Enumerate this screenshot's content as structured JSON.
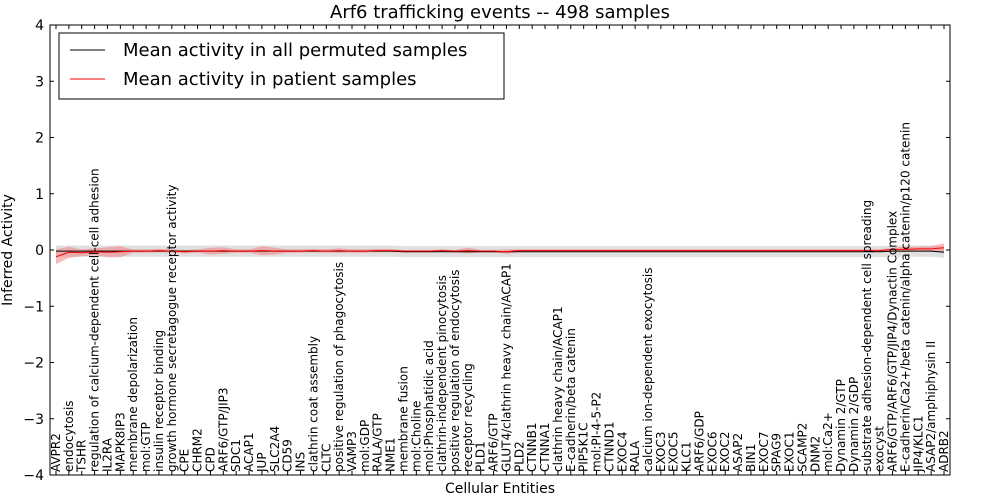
{
  "chart_data": {
    "type": "line",
    "title": "Arf6 trafficking events -- 498 samples",
    "xlabel": "Cellular Entities",
    "ylabel": "Inferred Activity",
    "ylim": [
      -4,
      4
    ],
    "yticks": [
      -4,
      -3,
      -2,
      -1,
      0,
      1,
      2,
      3,
      4
    ],
    "ytick_labels": [
      "−4",
      "−3",
      "−2",
      "−1",
      "0",
      "1",
      "2",
      "3",
      "4"
    ],
    "grid": false,
    "legend_position": "top-left",
    "categories": [
      "AVPR2",
      "endocytosis",
      "TSHR",
      "regulation of calcium-dependent cell-cell adhesion",
      "IL2RA",
      "MAPK8IP3",
      "membrane depolarization",
      "mol:GTP",
      "insulin receptor binding",
      "growth hormone secretagogue receptor activity",
      "CPE",
      "CHRM2",
      "CPD",
      "ARF6/GTP/JIP3",
      "SDC1",
      "ACAP1",
      "JUP",
      "SLC2A4",
      "CD59",
      "INS",
      "clathrin coat assembly",
      "CLTC",
      "positive regulation of phagocytosis",
      "VAMP3",
      "mol:GDP",
      "RALA/GTP",
      "NME1",
      "membrane fusion",
      "mol:Choline",
      "mol:Phosphatidic acid",
      "clathrin-independent pinocytosis",
      "positive regulation of endocytosis",
      "receptor recycling",
      "PLD1",
      "ARF6/GTP",
      "GLUT4/clathrin heavy chain/ACAP1",
      "PLD2",
      "CTNNB1",
      "CTNNA1",
      "clathrin heavy chain/ACAP1",
      "E-cadherin/beta catenin",
      "PIP5K1C",
      "mol:PI-4-5-P2",
      "CTNND1",
      "EXOC4",
      "RALA",
      "calcium ion-dependent exocytosis",
      "EXOC3",
      "EXOC5",
      "KLC1",
      "ARF6/GDP",
      "EXOC6",
      "EXOC2",
      "ASAP2",
      "BIN1",
      "EXOC7",
      "SPAG9",
      "EXOC1",
      "SCAMP2",
      "DNM2",
      "mol:Ca2+",
      "Dynamin 2/GTP",
      "Dynamin 2/GDP",
      "substrate adhesion-dependent cell spreading",
      "exocyst",
      "ARF6/GTP/ARF6/GTP/JIP4/Dynactin Complex",
      "E-cadherin/Ca2+/beta catenin/alpha catenin/p120 catenin",
      "JIP4/KLC1",
      "ASAP2/amphiphysin II",
      "ADRB2"
    ],
    "series": [
      {
        "name": "Mean activity in all permuted samples",
        "color": "#000000",
        "values": [
          -0.02,
          -0.02,
          -0.02,
          -0.02,
          -0.02,
          -0.02,
          -0.02,
          -0.02,
          -0.02,
          -0.02,
          -0.02,
          -0.02,
          -0.02,
          -0.02,
          -0.02,
          -0.02,
          -0.02,
          -0.02,
          -0.02,
          -0.02,
          -0.02,
          -0.02,
          -0.02,
          -0.02,
          -0.02,
          -0.02,
          -0.02,
          -0.03,
          -0.03,
          -0.03,
          -0.03,
          -0.03,
          -0.03,
          -0.03,
          -0.03,
          -0.03,
          -0.03,
          -0.03,
          -0.03,
          -0.03,
          -0.03,
          -0.03,
          -0.03,
          -0.03,
          -0.03,
          -0.03,
          -0.03,
          -0.03,
          -0.03,
          -0.03,
          -0.03,
          -0.03,
          -0.03,
          -0.03,
          -0.03,
          -0.03,
          -0.03,
          -0.03,
          -0.03,
          -0.03,
          -0.03,
          -0.03,
          -0.03,
          -0.03,
          -0.03,
          -0.02,
          -0.02,
          -0.02,
          -0.02,
          -0.04
        ],
        "band_halfwidth": 0.1,
        "band_color": "#cccccc"
      },
      {
        "name": "Mean activity in patient samples",
        "color": "#ff0000",
        "values": [
          -0.12,
          -0.04,
          -0.05,
          -0.03,
          -0.04,
          -0.03,
          -0.02,
          -0.02,
          -0.01,
          -0.02,
          -0.03,
          -0.02,
          -0.02,
          -0.01,
          -0.02,
          -0.02,
          -0.01,
          -0.02,
          -0.02,
          -0.02,
          -0.01,
          -0.02,
          -0.01,
          -0.02,
          -0.02,
          -0.01,
          -0.01,
          -0.02,
          -0.02,
          -0.02,
          -0.01,
          -0.02,
          -0.01,
          -0.02,
          -0.02,
          -0.03,
          -0.01,
          -0.01,
          -0.01,
          -0.01,
          -0.01,
          -0.01,
          -0.01,
          -0.01,
          -0.01,
          -0.01,
          -0.01,
          -0.01,
          -0.01,
          -0.01,
          -0.01,
          -0.01,
          -0.01,
          -0.01,
          -0.01,
          -0.01,
          -0.01,
          -0.01,
          -0.01,
          -0.01,
          -0.01,
          -0.01,
          -0.01,
          -0.01,
          -0.01,
          0.01,
          0.01,
          0.02,
          0.02,
          0.04
        ],
        "band_halfwidth": [
          0.13,
          0.1,
          0.06,
          0.06,
          0.09,
          0.1,
          0.03,
          0.03,
          0.03,
          0.03,
          0.03,
          0.03,
          0.06,
          0.06,
          0.03,
          0.03,
          0.08,
          0.06,
          0.03,
          0.03,
          0.03,
          0.03,
          0.04,
          0.03,
          0.03,
          0.03,
          0.03,
          0.02,
          0.02,
          0.02,
          0.02,
          0.02,
          0.05,
          0.02,
          0.02,
          0.04,
          0.02,
          0.02,
          0.02,
          0.02,
          0.02,
          0.02,
          0.02,
          0.02,
          0.02,
          0.02,
          0.02,
          0.02,
          0.02,
          0.02,
          0.02,
          0.02,
          0.02,
          0.02,
          0.02,
          0.02,
          0.02,
          0.02,
          0.02,
          0.02,
          0.02,
          0.02,
          0.02,
          0.02,
          0.02,
          0.03,
          0.05,
          0.04,
          0.05,
          0.08
        ],
        "band_color": "#f08080"
      }
    ]
  }
}
